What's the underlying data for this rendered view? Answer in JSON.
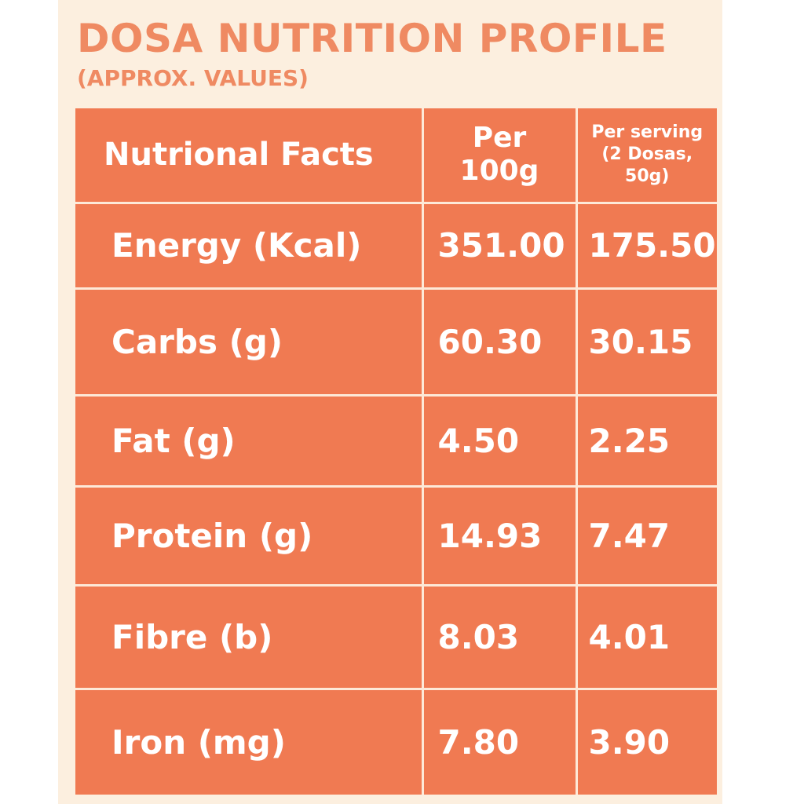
{
  "heading": {
    "title": "DOSA NUTRITION PROFILE",
    "subtitle": "(APPROX. VALUES)"
  },
  "table": {
    "headers": {
      "name": "Nutrional Facts",
      "per_100g": "Per\n100g",
      "per_serving": "Per serving\n(2 Dosas,\n50g)"
    },
    "rows": [
      {
        "name": "Energy (Kcal)",
        "per_100g": "351.00",
        "per_serving": "175.50"
      },
      {
        "name": "Carbs (g)",
        "per_100g": "60.30",
        "per_serving": "30.15"
      },
      {
        "name": "Fat (g)",
        "per_100g": "4.50",
        "per_serving": "2.25"
      },
      {
        "name": "Protein (g)",
        "per_100g": "14.93",
        "per_serving": "7.47"
      },
      {
        "name": "Fibre (b)",
        "per_100g": "8.03",
        "per_serving": "4.01"
      },
      {
        "name": "Iron (mg)",
        "per_100g": "7.80",
        "per_serving": "3.90"
      }
    ]
  },
  "colors": {
    "background": "#fcefdf",
    "title": "#ef8a62",
    "table_fill": "#f07a52",
    "grid_lines": "#fde9d8",
    "cell_text": "#ffffff"
  }
}
